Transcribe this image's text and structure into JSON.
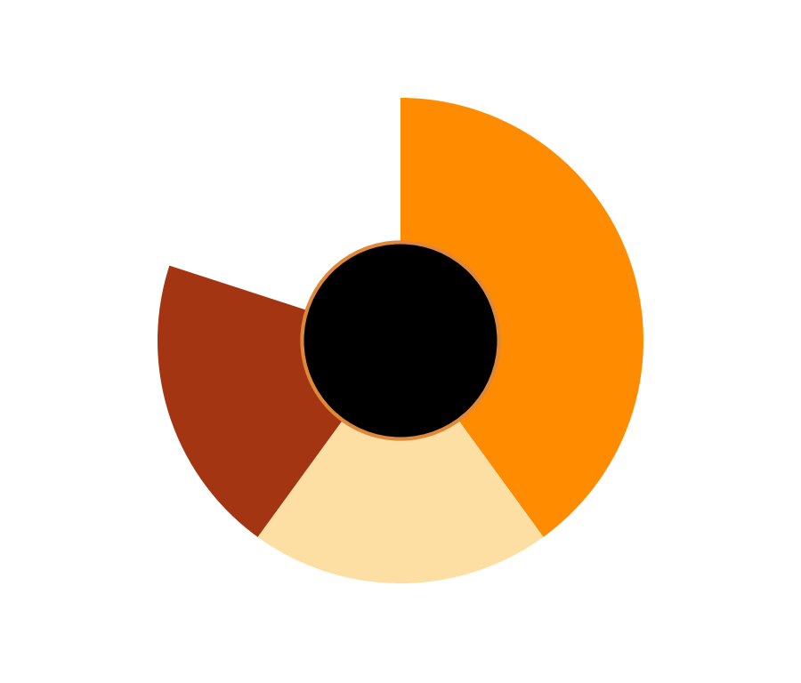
{
  "chart_data": {
    "type": "pie",
    "values": [
      0.4,
      0.2,
      0.2
    ],
    "colors": [
      "#ff8c00",
      "#fddfa4",
      "#a33512"
    ]
  }
}
